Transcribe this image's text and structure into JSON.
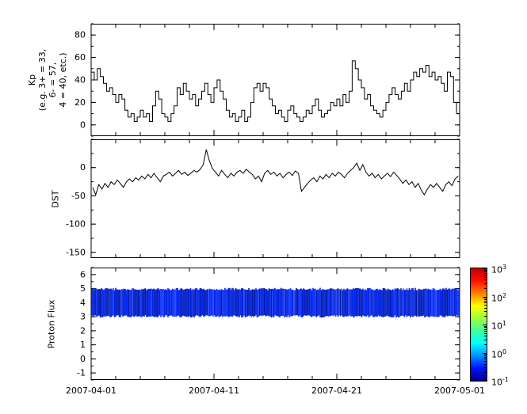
{
  "figure": {
    "background": "#ffffff",
    "line_color": "#000000"
  },
  "x_axis": {
    "tick_labels": [
      "2007-04-01",
      "2007-04-11",
      "2007-04-21",
      "2007-05-01"
    ],
    "range_days": [
      0,
      30
    ],
    "major_tick_days": [
      0,
      10,
      20,
      30
    ],
    "minor_step_days": 2
  },
  "chart_data": [
    {
      "type": "line",
      "style": "step",
      "ylabel_lines": [
        "Kp",
        "(e.g. 3+ = 33,",
        "6- = 57,",
        "4 = 40, etc.)"
      ],
      "ylim": [
        -10,
        90
      ],
      "yticks": [
        0,
        20,
        40,
        60,
        80
      ],
      "y_minor_step": 10,
      "values_per_day": 4,
      "values": [
        47,
        40,
        50,
        43,
        37,
        30,
        33,
        27,
        20,
        27,
        23,
        13,
        7,
        10,
        3,
        7,
        13,
        7,
        10,
        3,
        17,
        30,
        23,
        10,
        7,
        3,
        10,
        17,
        33,
        27,
        37,
        30,
        23,
        27,
        17,
        23,
        30,
        37,
        27,
        20,
        33,
        40,
        30,
        23,
        13,
        7,
        10,
        3,
        7,
        13,
        3,
        7,
        20,
        33,
        37,
        30,
        37,
        33,
        23,
        17,
        10,
        13,
        7,
        3,
        13,
        17,
        10,
        7,
        3,
        7,
        13,
        10,
        17,
        23,
        13,
        7,
        10,
        13,
        20,
        17,
        23,
        17,
        27,
        20,
        30,
        57,
        50,
        40,
        33,
        23,
        27,
        17,
        13,
        10,
        7,
        13,
        20,
        27,
        33,
        27,
        23,
        30,
        37,
        30,
        40,
        47,
        43,
        50,
        47,
        53,
        43,
        47,
        40,
        43,
        37,
        30,
        47,
        43,
        20,
        10
      ]
    },
    {
      "type": "line",
      "style": "line",
      "ylabel": "DST",
      "ylim": [
        -160,
        50
      ],
      "yticks": [
        0,
        -50,
        -100,
        -150
      ],
      "y_minor_step": 25,
      "values_per_day": 4,
      "values": [
        -35,
        -48,
        -30,
        -38,
        -28,
        -35,
        -25,
        -30,
        -22,
        -28,
        -35,
        -25,
        -20,
        -25,
        -18,
        -22,
        -15,
        -20,
        -12,
        -18,
        -10,
        -18,
        -25,
        -15,
        -12,
        -8,
        -15,
        -10,
        -5,
        -12,
        -8,
        -14,
        -10,
        -5,
        -8,
        -3,
        5,
        32,
        12,
        -2,
        -8,
        -15,
        -5,
        -12,
        -18,
        -10,
        -15,
        -8,
        -5,
        -10,
        -3,
        -8,
        -12,
        -20,
        -15,
        -25,
        -10,
        -5,
        -12,
        -8,
        -15,
        -10,
        -18,
        -12,
        -8,
        -14,
        -6,
        -10,
        -42,
        -35,
        -28,
        -22,
        -18,
        -25,
        -15,
        -20,
        -12,
        -18,
        -10,
        -15,
        -8,
        -12,
        -18,
        -10,
        -5,
        0,
        8,
        -5,
        5,
        -8,
        -15,
        -10,
        -18,
        -12,
        -20,
        -15,
        -10,
        -16,
        -8,
        -14,
        -20,
        -28,
        -22,
        -30,
        -25,
        -35,
        -28,
        -40,
        -48,
        -38,
        -30,
        -35,
        -28,
        -35,
        -42,
        -30,
        -25,
        -32,
        -20,
        -15
      ]
    },
    {
      "type": "heatmap",
      "ylabel": "Proton Flux",
      "ylim": [
        -1.5,
        6.5
      ],
      "yticks": [
        -1,
        0,
        1,
        2,
        3,
        4,
        5,
        6
      ],
      "y_minor_step": 0.5,
      "band": {
        "y_min": 3,
        "y_max": 5,
        "flux_min": 0.05,
        "flux_max": 0.3,
        "base_color": "#1a30d0"
      },
      "noise_seed": 42,
      "colorbar": {
        "scale": "log",
        "tick_exponents": [
          3,
          2,
          1,
          0,
          -1
        ],
        "gradient_stops": [
          "#000085",
          "#0010ff",
          "#0090ff",
          "#00ffff",
          "#40ff9f",
          "#9fff40",
          "#ffff00",
          "#ff8000",
          "#ff1000",
          "#c00000"
        ]
      }
    }
  ]
}
